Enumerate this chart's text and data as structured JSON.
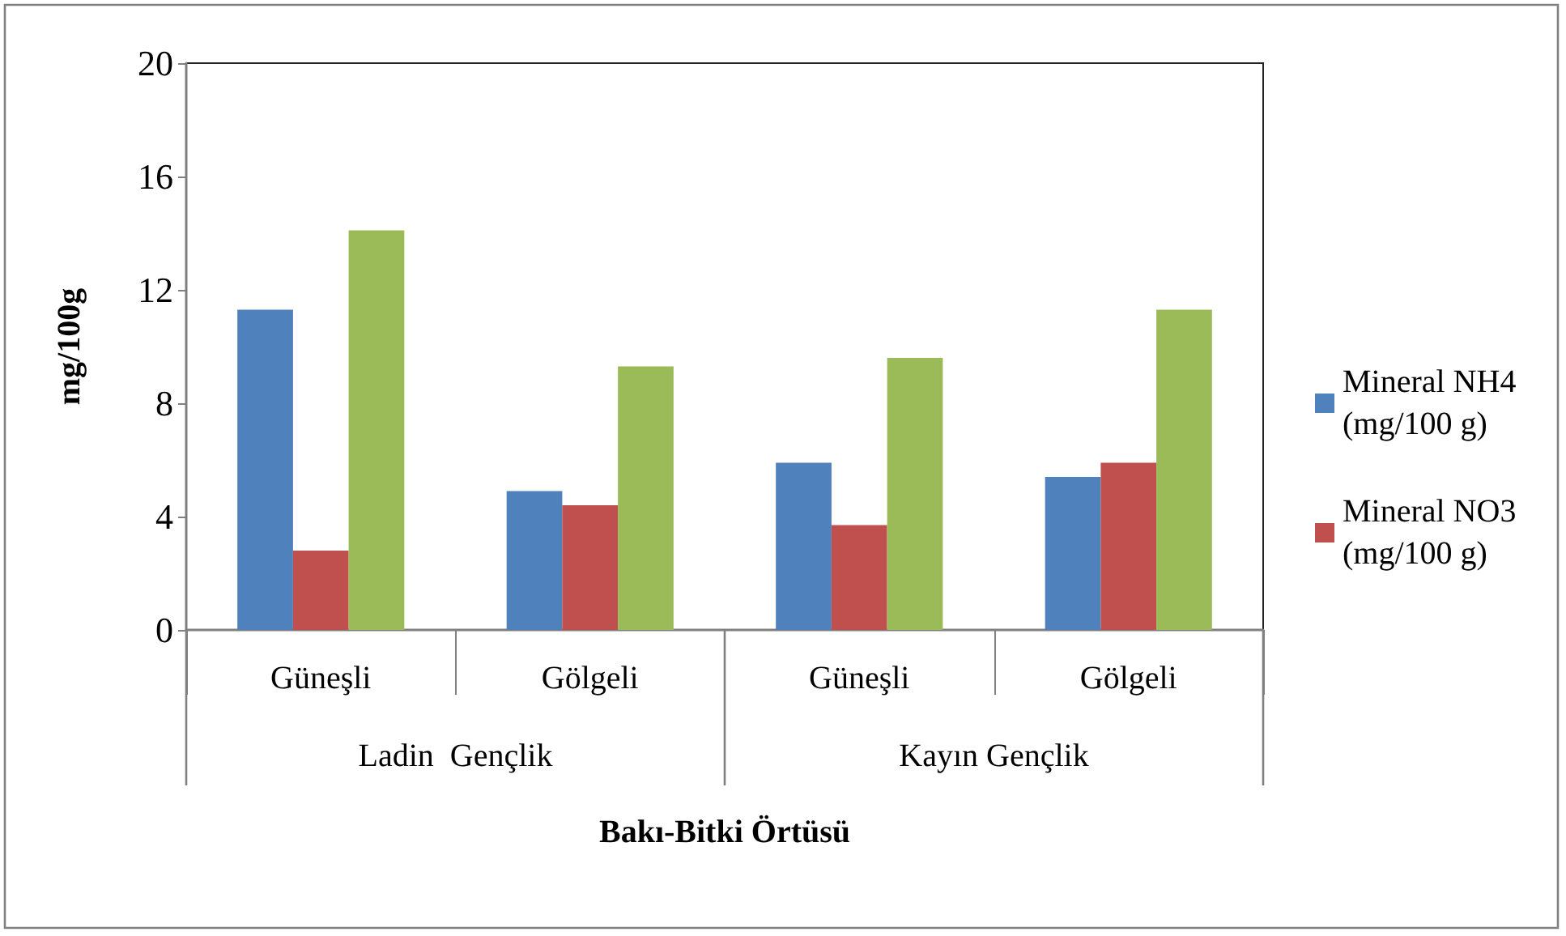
{
  "chart_data": {
    "type": "bar",
    "xlabel": "Bakı-Bitki Örtüsü",
    "ylabel": "mg/100g",
    "categories": [
      "Güneşli",
      "Gölgeli",
      "Güneşli",
      "Gölgeli"
    ],
    "annotations": [
      "Ladin  Gençlik",
      "Kayın Gençlik"
    ],
    "series": [
      {
        "name": "Mineral NH4 (mg/100 g)",
        "color": "#4f81bd",
        "values": [
          11.3,
          4.9,
          5.9,
          5.4
        ]
      },
      {
        "name": "Mineral NO3 (mg/100 g)",
        "color": "#c0504d",
        "values": [
          2.8,
          4.4,
          3.7,
          5.9
        ]
      },
      {
        "color": "#9bbb59",
        "values": [
          14.1,
          9.3,
          9.6,
          11.3
        ]
      }
    ],
    "ylim": [
      0,
      20
    ],
    "yticks": [
      0,
      4,
      8,
      12,
      16,
      20
    ],
    "grid": false,
    "legend": "right"
  }
}
